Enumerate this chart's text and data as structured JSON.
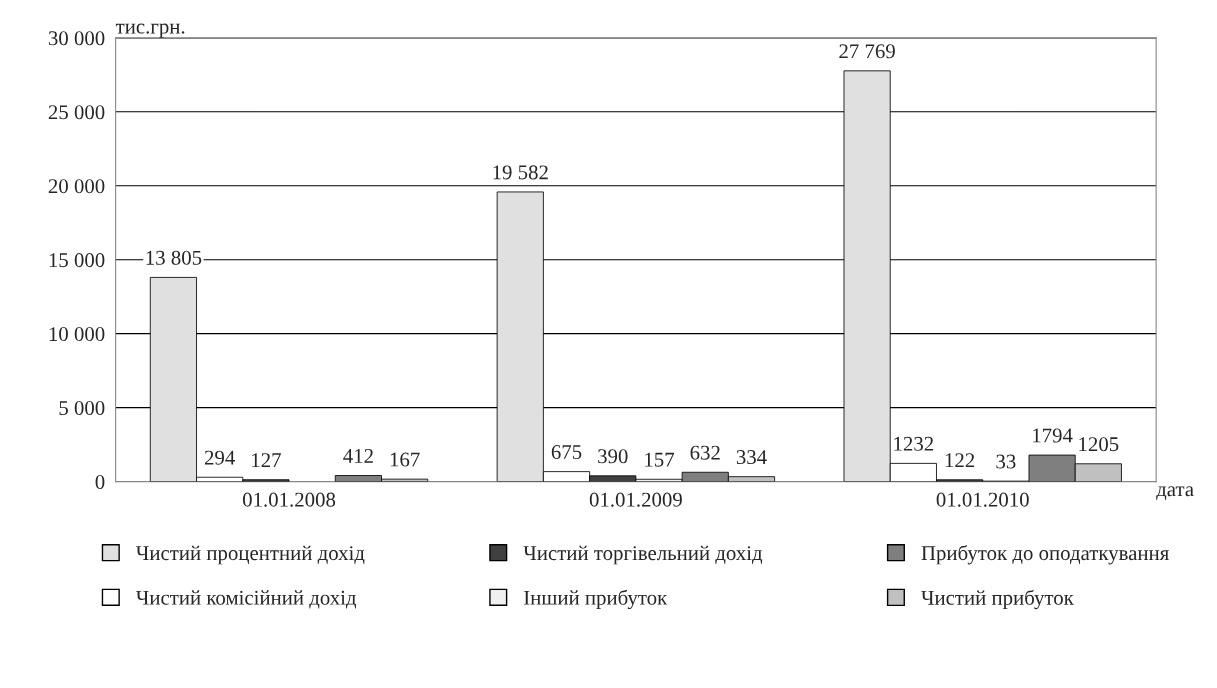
{
  "chart_data": {
    "type": "bar",
    "ylabel": "тис.грн.",
    "xlabel": "дата",
    "categories": [
      "01.01.2008",
      "01.01.2009",
      "01.01.2010"
    ],
    "series": [
      {
        "name": "Чистий процентний дохід",
        "color": "#e0e0e0",
        "values": [
          13805,
          19582,
          27769
        ],
        "value_labels": [
          "13 805",
          "19 582",
          "27 769"
        ]
      },
      {
        "name": "Чистий комісійний дохід",
        "color": "#ffffff",
        "values": [
          294,
          675,
          1232
        ],
        "value_labels": [
          "294",
          "675",
          "1232"
        ]
      },
      {
        "name": "Чистий торгівельний дохід",
        "color": "#404040",
        "values": [
          127,
          390,
          122
        ],
        "value_labels": [
          "127",
          "390",
          "122"
        ]
      },
      {
        "name": "Інший прибуток",
        "color": "#f0f0f0",
        "values": [
          null,
          157,
          33
        ],
        "value_labels": [
          null,
          "157",
          "33"
        ]
      },
      {
        "name": "Прибуток до оподаткування",
        "color": "#7f7f7f",
        "values": [
          412,
          632,
          1794
        ],
        "value_labels": [
          "412",
          "632",
          "1794"
        ]
      },
      {
        "name": "Чистий прибуток",
        "color": "#c0c0c0",
        "values": [
          167,
          334,
          1205
        ],
        "value_labels": [
          "167",
          "334",
          "1205"
        ]
      }
    ],
    "ylim": [
      0,
      30000
    ],
    "yticks": [
      0,
      {
        "value": 5000,
        "label": "5 000"
      },
      {
        "value": 10000,
        "label": "10 000"
      },
      {
        "value": 15000,
        "label": "15 000"
      },
      {
        "value": 20000,
        "label": "20 000"
      },
      {
        "value": 25000,
        "label": "25 000"
      },
      {
        "value": 30000,
        "label": "30 000"
      }
    ],
    "grid": "y",
    "legend": "bottom"
  }
}
